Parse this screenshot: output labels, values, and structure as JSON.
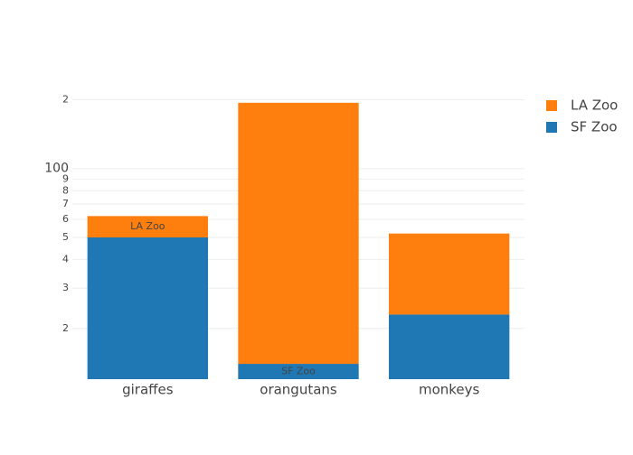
{
  "chart_data": {
    "type": "bar",
    "barmode": "stack",
    "log_y": true,
    "grid": true,
    "categories": [
      "giraffes",
      "orangutans",
      "monkeys"
    ],
    "series": [
      {
        "name": "SF Zoo",
        "color": "#1f77b4",
        "values": [
          50,
          14,
          23
        ],
        "text": [
          null,
          "SF Zoo",
          null
        ]
      },
      {
        "name": "LA Zoo",
        "color": "#ff7f0e",
        "values": [
          12,
          180,
          29
        ],
        "text": [
          "LA Zoo",
          null,
          null
        ]
      }
    ],
    "ylim": [
      12,
      220
    ],
    "yticks": [
      {
        "value": 20,
        "label": "2"
      },
      {
        "value": 30,
        "label": "3"
      },
      {
        "value": 40,
        "label": "4"
      },
      {
        "value": 50,
        "label": "5"
      },
      {
        "value": 60,
        "label": "6"
      },
      {
        "value": 70,
        "label": "7"
      },
      {
        "value": 80,
        "label": "8"
      },
      {
        "value": 90,
        "label": "9"
      },
      100,
      {
        "value": 200,
        "label": "2"
      }
    ],
    "legend": "top-right"
  }
}
